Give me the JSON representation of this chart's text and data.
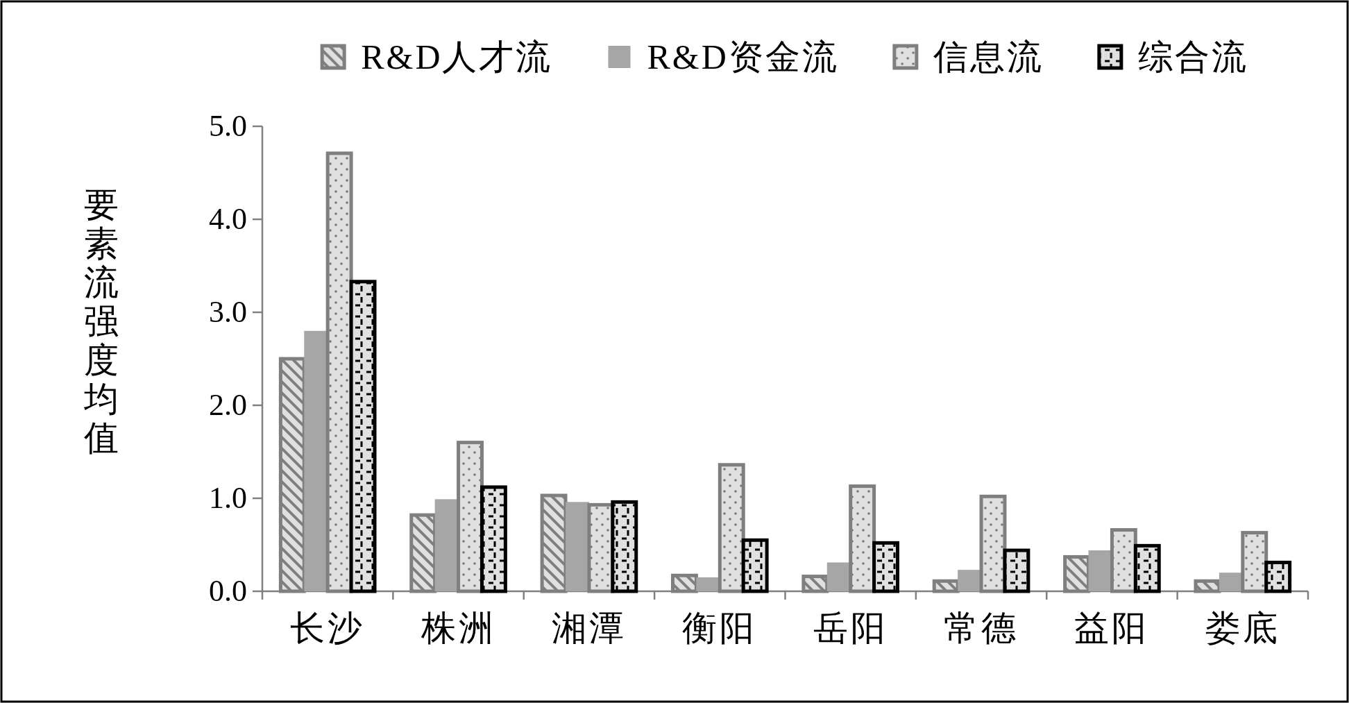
{
  "chart_data": {
    "type": "bar",
    "ylabel": "要素流强度均值",
    "categories": [
      "长沙",
      "株洲",
      "湘潭",
      "衡阳",
      "岳阳",
      "常德",
      "益阳",
      "娄底"
    ],
    "series": [
      {
        "name": "R&D人才流",
        "color": "#7f7f7f",
        "values": [
          2.5,
          0.82,
          1.03,
          0.17,
          0.16,
          0.11,
          0.37,
          0.11
        ]
      },
      {
        "name": "R&D资金流",
        "color": "#a6a6a6",
        "values": [
          2.8,
          0.99,
          0.96,
          0.15,
          0.31,
          0.23,
          0.44,
          0.2
        ]
      },
      {
        "name": "信息流",
        "color": "#7f7f7f",
        "values": [
          4.71,
          1.6,
          0.93,
          1.36,
          1.13,
          1.02,
          0.66,
          0.63
        ]
      },
      {
        "name": "综合流",
        "color": "#000000",
        "values": [
          3.33,
          1.12,
          0.96,
          0.55,
          0.52,
          0.44,
          0.49,
          0.31
        ]
      }
    ],
    "ylim": [
      0,
      5
    ],
    "yticks": [
      {
        "value": 0,
        "label": "0.0"
      },
      {
        "value": 1,
        "label": "1.0"
      },
      {
        "value": 2,
        "label": "2.0"
      },
      {
        "value": 3,
        "label": "3.0"
      },
      {
        "value": 4,
        "label": "4.0"
      },
      {
        "value": 5,
        "label": "5.0"
      }
    ],
    "grid": false,
    "legend": "top"
  }
}
